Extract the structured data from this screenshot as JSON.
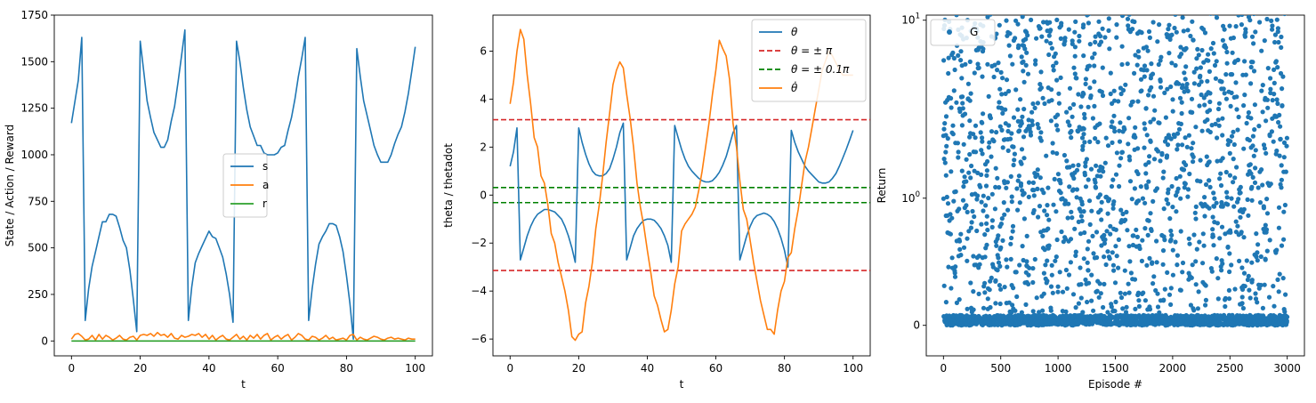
{
  "chart_data": [
    {
      "type": "line",
      "xlabel": "t",
      "ylabel": "State / Action / Reward",
      "xlim": [
        -5,
        105
      ],
      "ylim": [
        -80,
        1750
      ],
      "xticks": [
        0,
        20,
        40,
        60,
        80,
        100
      ],
      "yticks": [
        0,
        250,
        500,
        750,
        1000,
        1250,
        1500,
        1750
      ],
      "legend": "center-right",
      "series": [
        {
          "name": "s",
          "color": "#1f77b4",
          "x": [
            0,
            2,
            3,
            4,
            5,
            6,
            7,
            8,
            9,
            10,
            11,
            12,
            13,
            14,
            15,
            16,
            17,
            18,
            19,
            20,
            21,
            22,
            23,
            24,
            25,
            26,
            27,
            28,
            29,
            30,
            31,
            32,
            33,
            34,
            35,
            36,
            37,
            38,
            39,
            40,
            41,
            42,
            43,
            44,
            45,
            46,
            47,
            48,
            49,
            50,
            51,
            52,
            53,
            54,
            55,
            56,
            57,
            58,
            59,
            60,
            61,
            62,
            63,
            64,
            65,
            66,
            67,
            68,
            69,
            70,
            71,
            72,
            73,
            74,
            75,
            76,
            77,
            78,
            79,
            80,
            81,
            82,
            83,
            84,
            85,
            86,
            87,
            88,
            89,
            90,
            91,
            92,
            93,
            94,
            95,
            96,
            97,
            98,
            99,
            100
          ],
          "y": [
            1170,
            1400,
            1630,
            110,
            280,
            400,
            480,
            560,
            640,
            640,
            680,
            680,
            670,
            610,
            540,
            500,
            380,
            220,
            50,
            1610,
            1450,
            1290,
            1200,
            1120,
            1080,
            1040,
            1040,
            1080,
            1180,
            1260,
            1390,
            1530,
            1670,
            110,
            290,
            420,
            470,
            510,
            550,
            590,
            560,
            550,
            500,
            450,
            360,
            250,
            100,
            1610,
            1500,
            1360,
            1240,
            1150,
            1100,
            1050,
            1050,
            1010,
            1000,
            1000,
            1000,
            1010,
            1040,
            1050,
            1130,
            1200,
            1300,
            1420,
            1520,
            1630,
            110,
            280,
            410,
            520,
            560,
            590,
            630,
            630,
            620,
            560,
            480,
            350,
            200,
            10,
            1570,
            1420,
            1290,
            1210,
            1130,
            1050,
            1000,
            960,
            960,
            960,
            1000,
            1060,
            1110,
            1150,
            1230,
            1330,
            1450,
            1580
          ]
        },
        {
          "name": "a",
          "color": "#ff7f0e",
          "x": [
            0,
            1,
            2,
            3,
            4,
            5,
            6,
            7,
            8,
            9,
            10,
            11,
            12,
            13,
            14,
            15,
            16,
            17,
            18,
            19,
            20,
            21,
            22,
            23,
            24,
            25,
            26,
            27,
            28,
            29,
            30,
            31,
            32,
            33,
            34,
            35,
            36,
            37,
            38,
            39,
            40,
            41,
            42,
            43,
            44,
            45,
            46,
            47,
            48,
            49,
            50,
            51,
            52,
            53,
            54,
            55,
            56,
            57,
            58,
            59,
            60,
            61,
            62,
            63,
            64,
            65,
            66,
            67,
            68,
            69,
            70,
            71,
            72,
            73,
            74,
            75,
            76,
            77,
            78,
            79,
            80,
            81,
            82,
            83,
            84,
            85,
            86,
            87,
            88,
            89,
            90,
            91,
            92,
            93,
            94,
            95,
            96,
            97,
            98,
            99,
            100
          ],
          "y": [
            10,
            35,
            40,
            25,
            5,
            10,
            30,
            5,
            35,
            10,
            30,
            20,
            5,
            15,
            30,
            10,
            5,
            20,
            25,
            5,
            30,
            35,
            30,
            40,
            25,
            45,
            30,
            35,
            20,
            40,
            15,
            10,
            30,
            20,
            25,
            35,
            30,
            40,
            20,
            35,
            10,
            30,
            5,
            20,
            30,
            10,
            5,
            20,
            35,
            10,
            25,
            5,
            30,
            15,
            35,
            10,
            30,
            40,
            5,
            20,
            30,
            10,
            25,
            35,
            5,
            20,
            40,
            30,
            10,
            5,
            25,
            20,
            5,
            15,
            30,
            10,
            20,
            5,
            10,
            15,
            5,
            30,
            35,
            5,
            20,
            10,
            5,
            15,
            25,
            20,
            10,
            5,
            15,
            20,
            10,
            15,
            10,
            5,
            15,
            10,
            10
          ]
        },
        {
          "name": "r",
          "color": "#2ca02c",
          "x": [
            0,
            100
          ],
          "y": [
            0,
            0
          ]
        }
      ]
    },
    {
      "type": "line",
      "xlabel": "t",
      "ylabel": "theta / thetadot",
      "xlim": [
        -5,
        105
      ],
      "ylim": [
        -6.7,
        7.5
      ],
      "xticks": [
        0,
        20,
        40,
        60,
        80,
        100
      ],
      "yticks": [
        -6,
        -4,
        -2,
        0,
        2,
        4,
        6
      ],
      "legend": "top-right",
      "hlines": [
        {
          "y": 3.14159,
          "color": "#d62728"
        },
        {
          "y": -3.14159,
          "color": "#d62728"
        },
        {
          "y": 0.314159,
          "color": "#008000"
        },
        {
          "y": -0.314159,
          "color": "#008000"
        }
      ],
      "series": [
        {
          "name": "θ",
          "color": "#1f77b4",
          "x": [
            0,
            1,
            2,
            3,
            4,
            5,
            6,
            7,
            8,
            9,
            10,
            11,
            12,
            13,
            14,
            15,
            16,
            17,
            18,
            19,
            20,
            21,
            22,
            23,
            24,
            25,
            26,
            27,
            28,
            29,
            30,
            31,
            32,
            33,
            34,
            35,
            36,
            37,
            38,
            39,
            40,
            41,
            42,
            43,
            44,
            45,
            46,
            47,
            48,
            49,
            50,
            51,
            52,
            53,
            54,
            55,
            56,
            57,
            58,
            59,
            60,
            61,
            62,
            63,
            64,
            65,
            66,
            67,
            68,
            69,
            70,
            71,
            72,
            73,
            74,
            75,
            76,
            77,
            78,
            79,
            80,
            81,
            82,
            83,
            84,
            85,
            86,
            87,
            88,
            89,
            90,
            91,
            92,
            93,
            94,
            95,
            96,
            97,
            98,
            99,
            100
          ],
          "y": [
            1.2,
            1.8,
            2.8,
            -2.7,
            -2.2,
            -1.7,
            -1.3,
            -1.0,
            -0.8,
            -0.7,
            -0.6,
            -0.6,
            -0.65,
            -0.7,
            -0.85,
            -1.0,
            -1.3,
            -1.7,
            -2.2,
            -2.8,
            2.8,
            2.2,
            1.7,
            1.3,
            1.0,
            0.85,
            0.8,
            0.8,
            0.9,
            1.1,
            1.5,
            2.0,
            2.6,
            3.0,
            -2.7,
            -2.2,
            -1.7,
            -1.4,
            -1.2,
            -1.05,
            -1.0,
            -1.0,
            -1.05,
            -1.2,
            -1.4,
            -1.7,
            -2.1,
            -2.8,
            2.9,
            2.4,
            1.9,
            1.5,
            1.2,
            1.0,
            0.85,
            0.7,
            0.6,
            0.55,
            0.55,
            0.6,
            0.75,
            0.95,
            1.25,
            1.6,
            2.1,
            2.6,
            2.9,
            -2.7,
            -2.2,
            -1.7,
            -1.3,
            -1.0,
            -0.85,
            -0.8,
            -0.75,
            -0.8,
            -0.9,
            -1.1,
            -1.4,
            -1.8,
            -2.3,
            -3.0,
            2.7,
            2.2,
            1.8,
            1.5,
            1.2,
            1.0,
            0.85,
            0.7,
            0.55,
            0.5,
            0.5,
            0.55,
            0.7,
            0.9,
            1.2,
            1.55,
            1.9,
            2.3,
            2.7
          ]
        },
        {
          "name": "θ̇",
          "color": "#ff7f0e",
          "x": [
            0,
            1,
            2,
            3,
            4,
            5,
            6,
            7,
            8,
            9,
            10,
            11,
            12,
            13,
            14,
            15,
            16,
            17,
            18,
            19,
            20,
            21,
            22,
            23,
            24,
            25,
            26,
            27,
            28,
            29,
            30,
            31,
            32,
            33,
            34,
            35,
            36,
            37,
            38,
            39,
            40,
            41,
            42,
            43,
            44,
            45,
            46,
            47,
            48,
            49,
            50,
            51,
            52,
            53,
            54,
            55,
            56,
            57,
            58,
            59,
            60,
            61,
            62,
            63,
            64,
            65,
            66,
            67,
            68,
            69,
            70,
            71,
            72,
            73,
            74,
            75,
            76,
            77,
            78,
            79,
            80,
            81,
            82,
            83,
            84,
            85,
            86,
            87,
            88,
            89,
            90,
            91,
            92,
            93,
            94,
            95,
            96,
            97,
            98,
            99,
            100
          ],
          "y": [
            3.8,
            4.7,
            6.0,
            6.9,
            6.5,
            5.0,
            3.8,
            2.4,
            2.0,
            0.8,
            0.5,
            -0.4,
            -1.6,
            -2.0,
            -2.8,
            -3.4,
            -4.0,
            -4.8,
            -5.9,
            -6.05,
            -5.8,
            -5.7,
            -4.5,
            -3.8,
            -2.8,
            -1.4,
            -0.4,
            0.8,
            2.2,
            3.4,
            4.6,
            5.2,
            5.55,
            5.3,
            4.2,
            3.2,
            2.0,
            0.5,
            -0.5,
            -1.3,
            -2.3,
            -3.2,
            -4.2,
            -4.6,
            -5.2,
            -5.7,
            -5.6,
            -4.8,
            -3.7,
            -3.0,
            -1.5,
            -1.2,
            -1.0,
            -0.8,
            -0.5,
            0.2,
            1.0,
            2.0,
            3.0,
            4.2,
            5.2,
            6.45,
            6.1,
            5.8,
            4.8,
            3.0,
            2.0,
            0.6,
            -0.6,
            -1.0,
            -1.9,
            -2.8,
            -3.6,
            -4.4,
            -5.0,
            -5.6,
            -5.6,
            -5.8,
            -4.8,
            -4.0,
            -3.6,
            -2.6,
            -2.4,
            -1.4,
            -0.6,
            0.4,
            1.4,
            2.0,
            2.8,
            3.6,
            4.4,
            5.2,
            5.6,
            6.0,
            5.8,
            5.5,
            5.2,
            5.0,
            5.0,
            5.0,
            5.0
          ]
        }
      ]
    },
    {
      "type": "scatter",
      "xlabel": "Episode #",
      "ylabel": "Return",
      "xlim": [
        -150,
        3150
      ],
      "ylim": [
        -0.12,
        1.22
      ],
      "yscale": "symlog",
      "xticks": [
        0,
        500,
        1000,
        1500,
        2000,
        2500,
        3000
      ],
      "yticks": [
        {
          "value": 0,
          "label": "0"
        },
        {
          "value": 1,
          "label": "10^0"
        },
        {
          "value": 10,
          "label": "10^1"
        }
      ],
      "legend": "top-left",
      "series": [
        {
          "name": "G",
          "color": "#1f77b4",
          "n_points": 3000,
          "distribution": "about 45% of episodes near 0 (0–0.08), about 20% between 0.1 and 1, about 35% between 1 and 14"
        }
      ]
    }
  ],
  "legend_labels": {
    "p1": [
      "s",
      "a",
      "r"
    ],
    "p2": [
      "θ",
      "θ = ± π",
      "θ = ± 0.1π",
      "θ̇"
    ],
    "p3": [
      "G"
    ]
  }
}
